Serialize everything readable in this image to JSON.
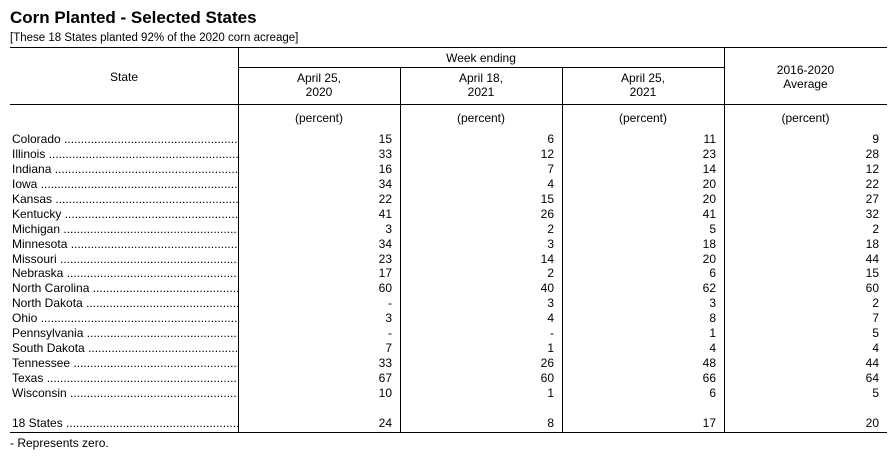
{
  "title": "Corn Planted - Selected States",
  "subtitle": "[These 18 States planted 92% of the 2020 corn acreage]",
  "table": {
    "header": {
      "state": "State",
      "group": "Week ending",
      "columns": [
        [
          "April 25,",
          "2020"
        ],
        [
          "April 18,",
          "2021"
        ],
        [
          "April 25,",
          "2021"
        ],
        [
          "2016-2020",
          "Average"
        ]
      ]
    },
    "units": [
      "(percent)",
      "(percent)",
      "(percent)",
      "(percent)"
    ],
    "rows": [
      {
        "state": "Colorado",
        "values": [
          15,
          6,
          11,
          9
        ]
      },
      {
        "state": "Illinois",
        "values": [
          33,
          12,
          23,
          28
        ]
      },
      {
        "state": "Indiana",
        "values": [
          16,
          7,
          14,
          12
        ]
      },
      {
        "state": "Iowa",
        "values": [
          34,
          4,
          20,
          22
        ]
      },
      {
        "state": "Kansas",
        "values": [
          22,
          15,
          20,
          27
        ]
      },
      {
        "state": "Kentucky",
        "values": [
          41,
          26,
          41,
          32
        ]
      },
      {
        "state": "Michigan",
        "values": [
          3,
          2,
          5,
          2
        ]
      },
      {
        "state": "Minnesota",
        "values": [
          34,
          3,
          18,
          18
        ]
      },
      {
        "state": "Missouri",
        "values": [
          23,
          14,
          20,
          44
        ]
      },
      {
        "state": "Nebraska",
        "values": [
          17,
          2,
          6,
          15
        ]
      },
      {
        "state": "North Carolina",
        "values": [
          60,
          40,
          62,
          60
        ]
      },
      {
        "state": "North Dakota",
        "values": [
          "-",
          3,
          3,
          2
        ]
      },
      {
        "state": "Ohio",
        "values": [
          3,
          4,
          8,
          7
        ]
      },
      {
        "state": "Pennsylvania",
        "values": [
          "-",
          "-",
          1,
          5
        ]
      },
      {
        "state": "South Dakota",
        "values": [
          7,
          1,
          4,
          4
        ]
      },
      {
        "state": "Tennessee",
        "values": [
          33,
          26,
          48,
          44
        ]
      },
      {
        "state": "Texas",
        "values": [
          67,
          60,
          66,
          64
        ]
      },
      {
        "state": "Wisconsin",
        "values": [
          10,
          1,
          6,
          5
        ]
      }
    ],
    "total": {
      "state": "18 States",
      "values": [
        24,
        8,
        17,
        20
      ]
    }
  },
  "footnote": "- Represents zero."
}
